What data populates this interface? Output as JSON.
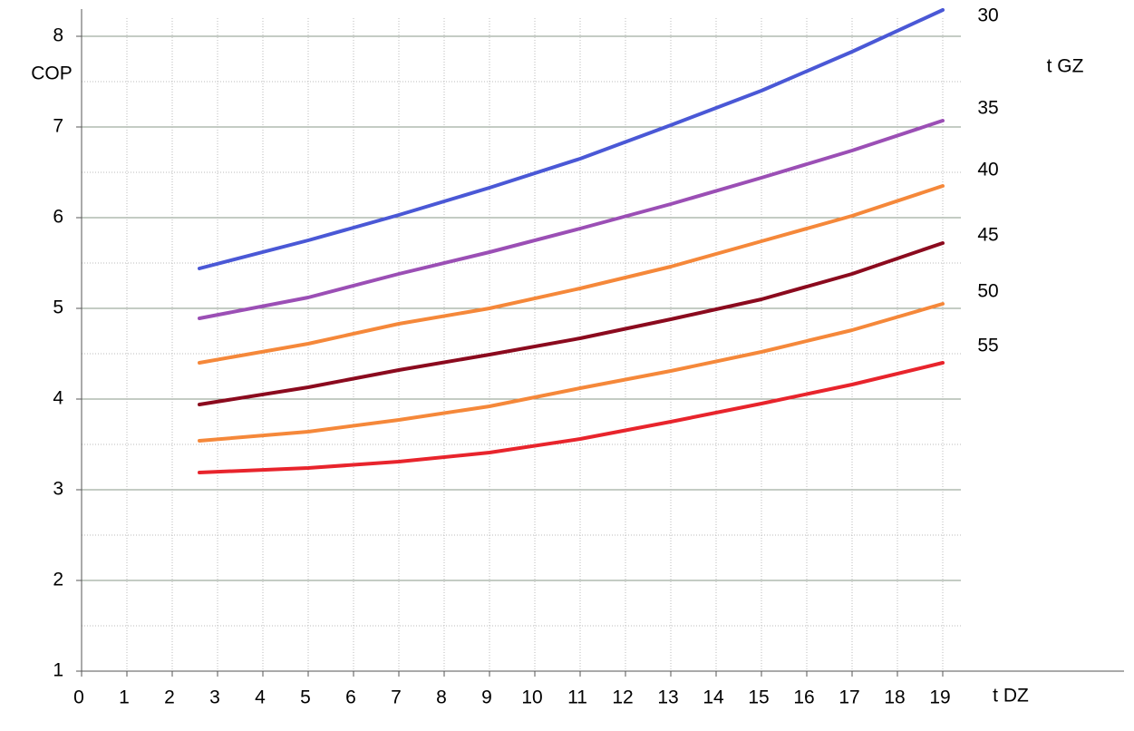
{
  "chart_data": {
    "type": "line",
    "y_label": "COP",
    "x_label": "t DZ",
    "legend_title": "t GZ",
    "x": [
      2.6,
      5,
      7,
      9,
      11,
      13,
      15,
      17,
      19
    ],
    "xlim": [
      0,
      23
    ],
    "xticks": [
      0,
      1,
      2,
      3,
      4,
      5,
      6,
      7,
      8,
      9,
      10,
      11,
      12,
      13,
      14,
      15,
      16,
      17,
      18,
      19
    ],
    "ylim": [
      1,
      8.3
    ],
    "yticks": [
      1,
      2,
      3,
      4,
      5,
      6,
      7,
      8
    ],
    "grid": true,
    "series": [
      {
        "name": "30",
        "color": "#4a58d6",
        "values": [
          5.44,
          5.75,
          6.03,
          6.33,
          6.65,
          7.02,
          7.4,
          7.83,
          8.29
        ]
      },
      {
        "name": "35",
        "color": "#9b4fb5",
        "values": [
          4.89,
          5.12,
          5.38,
          5.62,
          5.88,
          6.15,
          6.44,
          6.74,
          7.07
        ]
      },
      {
        "name": "40",
        "color": "#f5883a",
        "values": [
          4.4,
          4.61,
          4.83,
          5.0,
          5.22,
          5.46,
          5.74,
          6.02,
          6.35
        ]
      },
      {
        "name": "45",
        "color": "#8b0a1e",
        "values": [
          3.94,
          4.13,
          4.32,
          4.49,
          4.67,
          4.88,
          5.1,
          5.38,
          5.72
        ]
      },
      {
        "name": "50",
        "color": "#f5883a",
        "values": [
          3.54,
          3.64,
          3.77,
          3.92,
          4.12,
          4.31,
          4.52,
          4.76,
          5.05
        ]
      },
      {
        "name": "55",
        "color": "#e8242c",
        "values": [
          3.19,
          3.24,
          3.31,
          3.41,
          3.56,
          3.75,
          3.95,
          4.16,
          4.4
        ]
      }
    ]
  }
}
